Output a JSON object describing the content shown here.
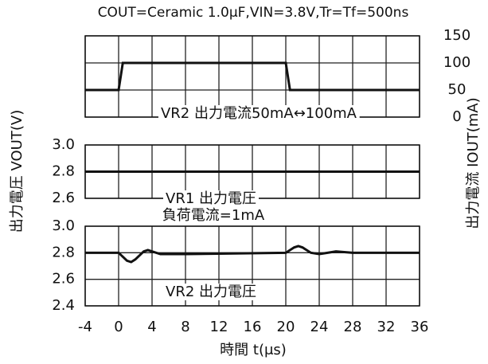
{
  "chart_data": [
    {
      "type": "line",
      "title": "COUT=Ceramic 1.0μF,VIN=3.8V,Tr=Tf=500ns",
      "y2label": "出力電流 IOUT(mA)",
      "annotations": [
        "VR2 出力電流50mA↔100mA"
      ],
      "x": [
        -4,
        0,
        0.5,
        20,
        20.5,
        36
      ],
      "series": [
        {
          "color": "#111111",
          "axis": "y2",
          "values": [
            50,
            50,
            100,
            100,
            50,
            50
          ]
        }
      ],
      "y2lim": [
        0,
        150
      ],
      "y2ticks": [
        0,
        50,
        100,
        150
      ],
      "grid": true
    },
    {
      "type": "line",
      "ylabel": "出力電圧 VOUT(V)",
      "annotations": [
        "VR1 出力電圧",
        "負荷電流=1mA"
      ],
      "x": [
        -4,
        36
      ],
      "series": [
        {
          "color": "#111111",
          "values": [
            2.8,
            2.8
          ]
        }
      ],
      "ylim": [
        2.6,
        3.0
      ],
      "yticks": [
        2.6,
        2.8,
        {
          "value": 3,
          "label": "3.0"
        }
      ],
      "grid": true
    },
    {
      "type": "line",
      "xlabel": "時間 t(μs)",
      "annotations": [
        "VR2 出力電圧"
      ],
      "x": [
        -4,
        0,
        0.5,
        1,
        1.5,
        2,
        2.5,
        3,
        3.5,
        4,
        5,
        6,
        8,
        20,
        20.5,
        21,
        21.5,
        22,
        22.5,
        23,
        24,
        25,
        26,
        28,
        36
      ],
      "series": [
        {
          "color": "#111111",
          "values": [
            2.8,
            2.8,
            2.77,
            2.74,
            2.73,
            2.75,
            2.78,
            2.81,
            2.82,
            2.81,
            2.79,
            2.79,
            2.79,
            2.8,
            2.82,
            2.84,
            2.85,
            2.84,
            2.82,
            2.8,
            2.79,
            2.8,
            2.81,
            2.8,
            2.8
          ]
        }
      ],
      "ylim": [
        2.4,
        3.0
      ],
      "yticks": [
        2.4,
        2.6,
        2.8,
        {
          "value": 3,
          "label": "3.0"
        }
      ],
      "xlim": [
        -4,
        36
      ],
      "xticks": [
        -4,
        0,
        4,
        8,
        12,
        16,
        20,
        24,
        28,
        32,
        36
      ],
      "grid": true
    }
  ]
}
